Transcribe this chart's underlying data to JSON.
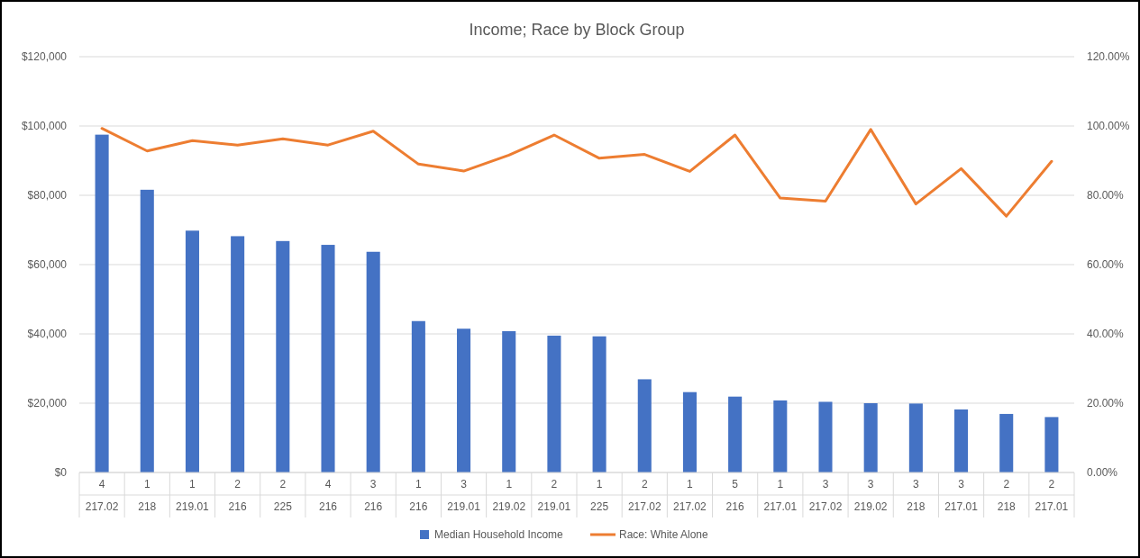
{
  "chart_data": {
    "type": "bar",
    "title": "Income; Race by Block Group",
    "categories": [
      "4\n217.02",
      "1\n218",
      "1\n219.01",
      "2\n216",
      "2\n225",
      "4\n216",
      "3\n216",
      "1\n216",
      "3\n219.01",
      "1\n219.02",
      "2\n219.01",
      "1\n225",
      "2\n217.02",
      "1\n217.02",
      "5\n216",
      "1\n217.01",
      "3\n217.02",
      "3\n219.02",
      "3\n218",
      "3\n217.01",
      "2\n218",
      "2\n217.01"
    ],
    "series": [
      {
        "name": "Median Household Income",
        "color": "#4472c4",
        "values": [
          97500,
          81600,
          69800,
          68200,
          66800,
          65700,
          63700,
          43700,
          41500,
          40800,
          39500,
          39300,
          26900,
          23200,
          21900,
          20800,
          20400,
          20000,
          19900,
          18200,
          16900,
          16000
        ]
      },
      {
        "name": "Race: White Alone",
        "type": "line",
        "axis": "y2",
        "color": "#ed7d31",
        "values": [
          99.3,
          92.8,
          95.8,
          94.5,
          96.3,
          94.5,
          98.5,
          89,
          87,
          91.6,
          97.4,
          90.7,
          91.8,
          86.9,
          97.4,
          79.2,
          78.3,
          99,
          77.5,
          87.7,
          74,
          89.8
        ]
      }
    ],
    "ylim": [
      0,
      120000
    ],
    "yticks": [
      {
        "value": 0,
        "label": "$0"
      },
      {
        "value": 20000,
        "label": "$20,000"
      },
      {
        "value": 40000,
        "label": "$40,000"
      },
      {
        "value": 60000,
        "label": "$60,000"
      },
      {
        "value": 80000,
        "label": "$80,000"
      },
      {
        "value": 100000,
        "label": "$100,000"
      },
      {
        "value": 120000,
        "label": "$120,000"
      }
    ],
    "y2lim": [
      0,
      120
    ],
    "y2ticks": [
      {
        "value": 0,
        "label": "0.00%"
      },
      {
        "value": 20,
        "label": "20.00%"
      },
      {
        "value": 40,
        "label": "40.00%"
      },
      {
        "value": 60,
        "label": "60.00%"
      },
      {
        "value": 80,
        "label": "80.00%"
      },
      {
        "value": 100,
        "label": "100.00%"
      },
      {
        "value": 120,
        "label": "120.00%"
      }
    ],
    "grid": "y",
    "legend": "bottom",
    "line_style": "solid"
  }
}
